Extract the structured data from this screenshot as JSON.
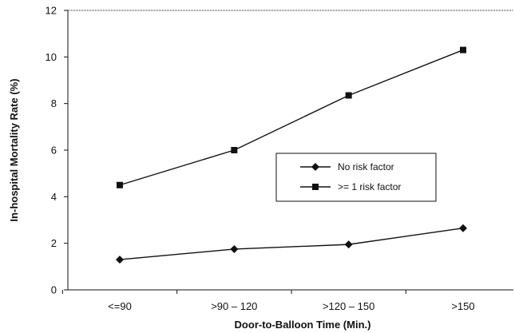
{
  "chart_data": {
    "type": "line",
    "categories": [
      "<=90",
      ">90 – 120",
      ">120 – 150",
      ">150"
    ],
    "xlabel": "Door-to-Balloon Time (Min.)",
    "ylabel": "In-hospital Mortality Rate (%)",
    "ylim": [
      0,
      12
    ],
    "yticks": [
      0,
      2,
      4,
      6,
      8,
      10,
      12
    ],
    "grid": false,
    "legend_position": "center-right",
    "series": [
      {
        "name": "No risk factor",
        "marker": "diamond",
        "color": "#111111",
        "values": [
          1.3,
          1.75,
          1.95,
          2.65
        ]
      },
      {
        "name": ">= 1 risk factor",
        "marker": "square",
        "color": "#111111",
        "values": [
          4.5,
          6.0,
          8.35,
          10.3
        ]
      }
    ]
  }
}
